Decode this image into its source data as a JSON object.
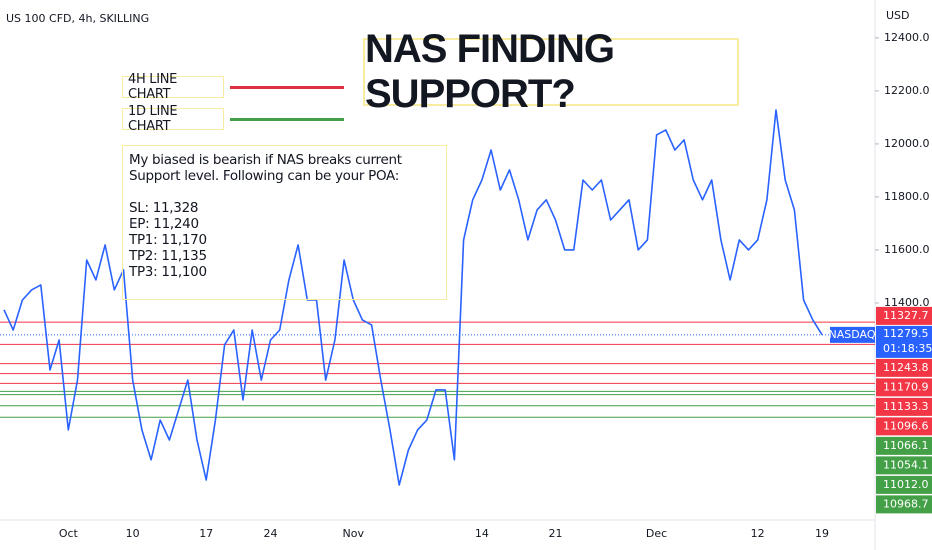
{
  "header": "US 100 CFD, 4h, SKILLING",
  "title": "NAS FINDING SUPPORT?",
  "legend": [
    {
      "name": "4H LINE CHART",
      "color": "#e03040"
    },
    {
      "name": "1D LINE CHART",
      "color": "#43a047"
    }
  ],
  "note": [
    "My biased is bearish if NAS breaks current Support level. Following can be your POA:",
    "",
    "SL: 11,328",
    "EP: 11,240",
    "TP1: 11,170",
    "TP2: 11,135",
    "TP3: 11,100"
  ],
  "chart_data": {
    "type": "line",
    "currency": "USD",
    "categories": [
      null,
      null,
      null,
      null,
      null,
      null,
      null,
      "Oct",
      null,
      null,
      null,
      null,
      null,
      null,
      "10",
      null,
      null,
      null,
      null,
      null,
      null,
      null,
      "17",
      null,
      null,
      null,
      null,
      null,
      null,
      "24",
      null,
      null,
      null,
      null,
      null,
      null,
      null,
      null,
      "Nov",
      null,
      null,
      null,
      null,
      null,
      null,
      null,
      null,
      null,
      null,
      null,
      null,
      null,
      "14",
      null,
      null,
      null,
      null,
      null,
      null,
      null,
      "21",
      null,
      null,
      null,
      null,
      null,
      null,
      null,
      null,
      null,
      null,
      "Dec",
      null,
      null,
      null,
      null,
      null,
      null,
      null,
      null,
      null,
      null,
      "12",
      null,
      null,
      null,
      null,
      null,
      null,
      "19"
    ],
    "series": [
      {
        "name": "NASDAQ",
        "color": "#2962ff",
        "values": [
          11374,
          11298,
          11411,
          11449,
          11468,
          11147,
          11260,
          10921,
          11109,
          11562,
          11487,
          11619,
          11449,
          11525,
          11109,
          10921,
          10808,
          10958,
          10883,
          10996,
          11109,
          10883,
          10732,
          10958,
          11242,
          11298,
          11034,
          11298,
          11109,
          11260,
          11298,
          11487,
          11619,
          11411,
          11411,
          11109,
          11260,
          11562,
          11411,
          11336,
          11317,
          11109,
          10921,
          10713,
          10845,
          10921,
          10958,
          11072,
          11072,
          10808,
          11638,
          11789,
          11864,
          11977,
          11826,
          11902,
          11789,
          11638,
          11751,
          11789,
          11713,
          11600,
          11600,
          11864,
          11826,
          11864,
          11713,
          11751,
          11789,
          11600,
          11638,
          12034,
          12053,
          11977,
          12015,
          11864,
          11789,
          11864,
          11638,
          11487,
          11638,
          11600,
          11638,
          11789,
          12128,
          11864,
          11751,
          11411,
          11336,
          11280
        ]
      }
    ],
    "last_price": {
      "value": 11279.5,
      "label": "11279.5"
    },
    "countdown": "01:18:35",
    "levels": [
      {
        "value": 11327.7,
        "label": "11327.7",
        "color": "#f23645"
      },
      {
        "value": 11243.8,
        "label": "11243.8",
        "color": "#f23645"
      },
      {
        "value": 11170.9,
        "label": "11170.9",
        "color": "#f23645"
      },
      {
        "value": 11133.3,
        "label": "11133.3",
        "color": "#f23645"
      },
      {
        "value": 11096.6,
        "label": "11096.6",
        "color": "#f23645"
      },
      {
        "value": 11066.1,
        "label": "11066.1",
        "color": "#43a047"
      },
      {
        "value": 11054.1,
        "label": "11054.1",
        "color": "#43a047"
      },
      {
        "value": 11012.0,
        "label": "11012.0",
        "color": "#43a047"
      },
      {
        "value": 10968.7,
        "label": "10968.7",
        "color": "#43a047"
      }
    ],
    "ylim": [
      10581,
      12543
    ],
    "yticks": [
      {
        "value": 11400,
        "label": "11400.0"
      },
      {
        "value": 11600,
        "label": "11600.0"
      },
      {
        "value": 11800,
        "label": "11800.0"
      },
      {
        "value": 12000,
        "label": "12000.0"
      },
      {
        "value": 12200,
        "label": "12200.0"
      },
      {
        "value": 12400,
        "label": "12400.0"
      }
    ]
  }
}
